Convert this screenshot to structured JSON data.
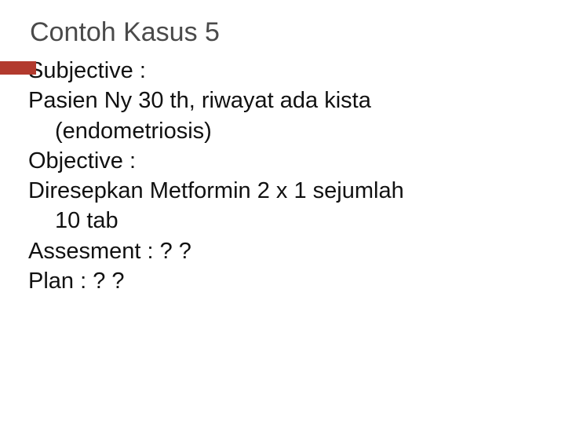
{
  "title": "Contoh Kasus 5",
  "lines": {
    "l1": "Subjective :",
    "l2": "Pasien Ny 30 th, riwayat  ada kista",
    "l3": "(endometriosis)",
    "l4": "Objective :",
    "l5": "Diresepkan Metformin  2 x 1 sejumlah",
    "l6": "10 tab",
    "l7": "Assesment : ? ?",
    "l8": "Plan :  ? ?"
  },
  "colors": {
    "title": "#4a4a4a",
    "accent": "#b23a2e",
    "text": "#111111",
    "background": "#ffffff"
  },
  "typography": {
    "title_fontsize": 34,
    "body_fontsize": 29,
    "font_family": "Arial"
  }
}
